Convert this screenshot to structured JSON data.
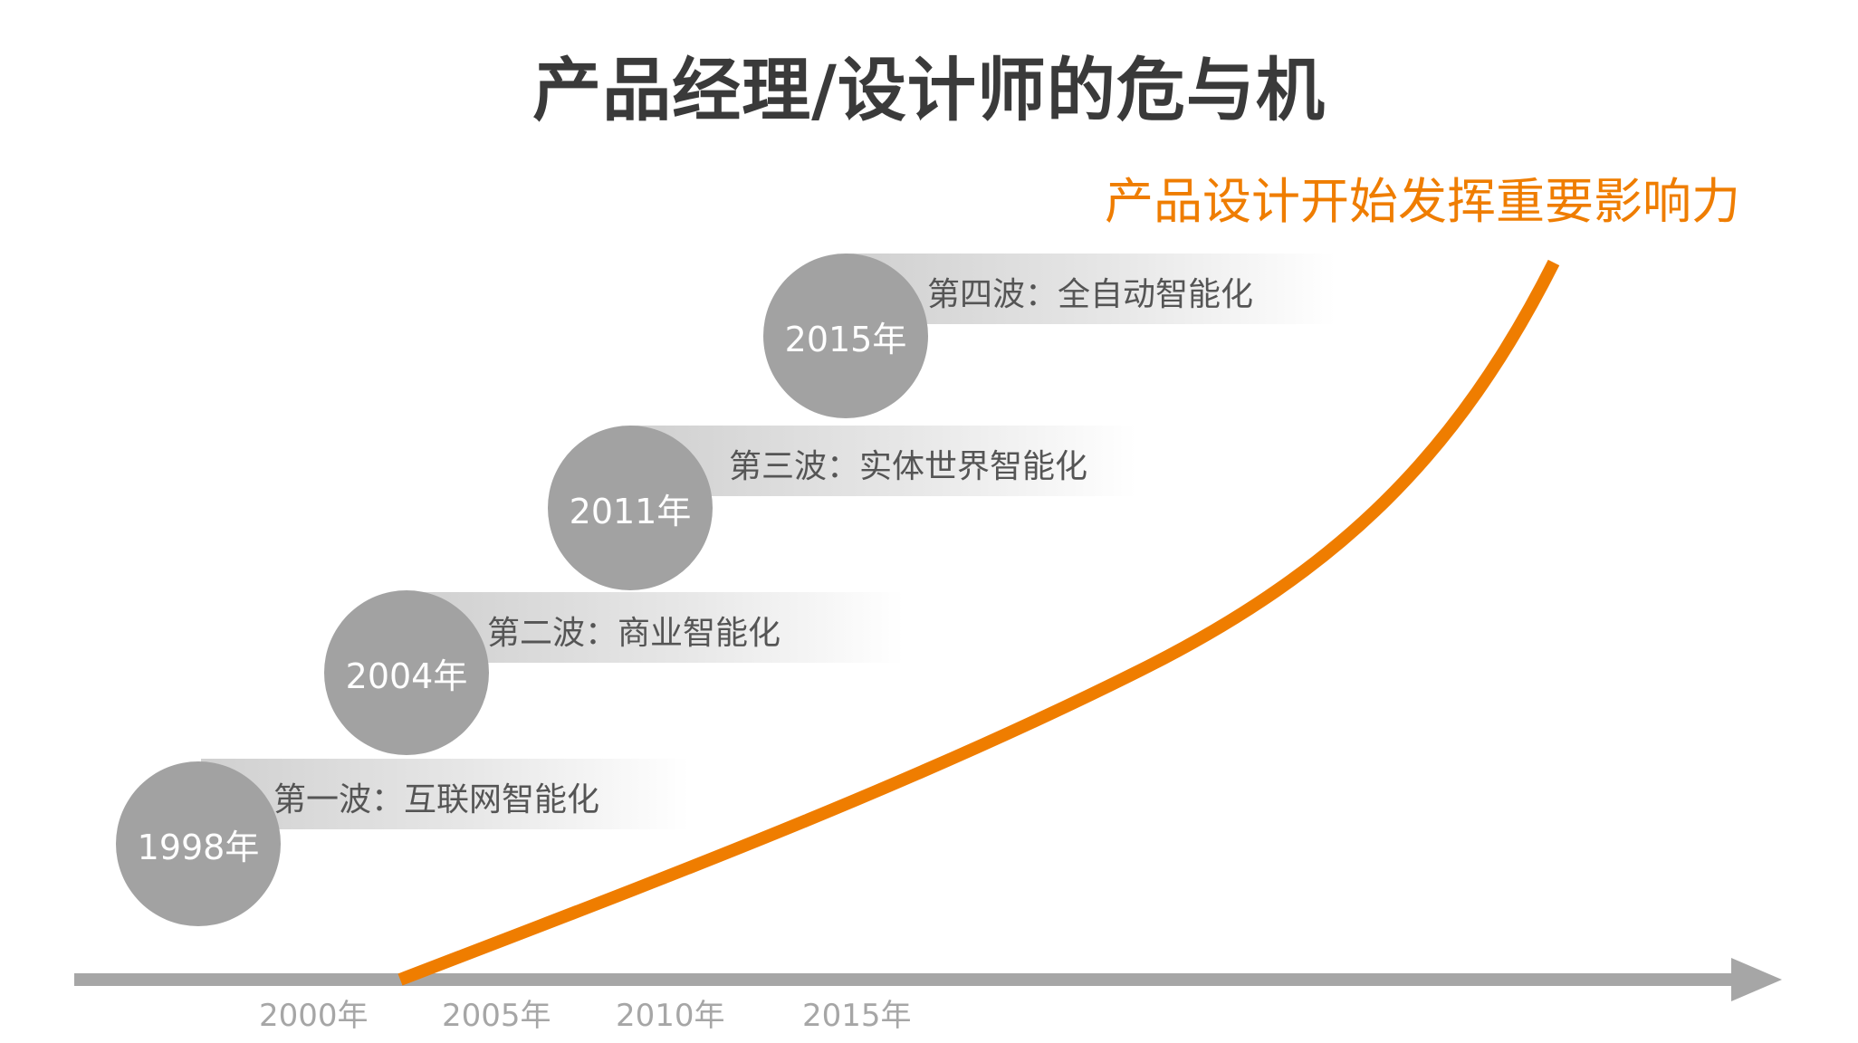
{
  "title": "产品经理/设计师的危与机",
  "highlight": "产品设计开始发挥重要影响力",
  "waves": [
    {
      "year": "1998年",
      "label": "第一波：互联网智能化"
    },
    {
      "year": "2004年",
      "label": "第二波：商业智能化"
    },
    {
      "year": "2011年",
      "label": "第三波：实体世界智能化"
    },
    {
      "year": "2015年",
      "label": "第四波：全自动智能化"
    }
  ],
  "axis_ticks": [
    "2000年",
    "2005年",
    "2010年",
    "2015年"
  ],
  "colors": {
    "accent": "#ef7d00",
    "axis": "#a6a6a6",
    "circle": "#a2a2a2",
    "title": "#3a3a3a"
  }
}
